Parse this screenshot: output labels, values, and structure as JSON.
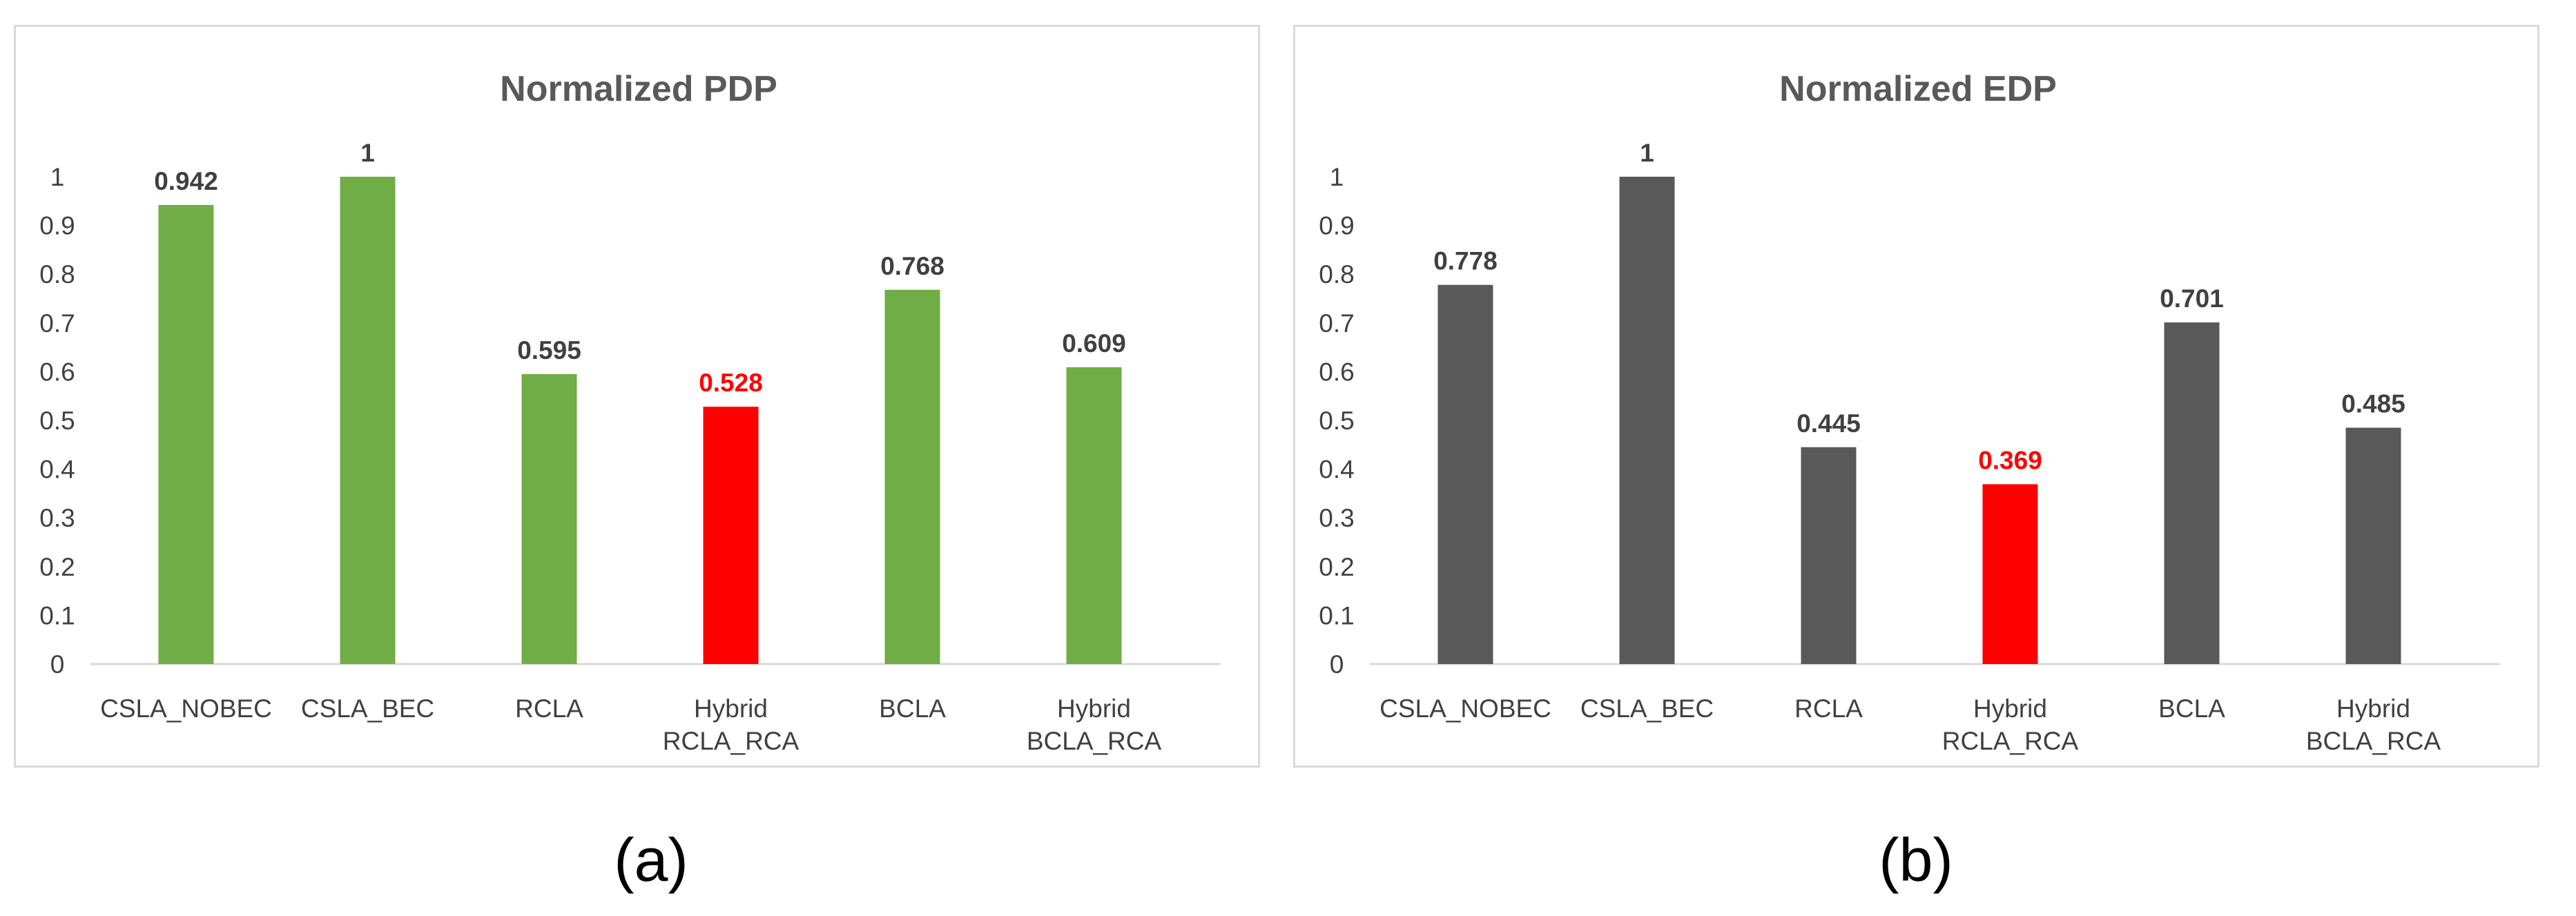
{
  "captions": {
    "a": "(a)",
    "b": "(b)"
  },
  "colors": {
    "pdp_bar": "#70ad47",
    "edp_bar": "#595959",
    "highlight": "#ff0000",
    "label": "#404040",
    "title": "#595959"
  },
  "chart_data": [
    {
      "type": "bar",
      "title": "Normalized PDP",
      "categories": [
        [
          "CSLA_NOBEC"
        ],
        [
          "CSLA_BEC"
        ],
        [
          "RCLA"
        ],
        [
          "Hybrid",
          "RCLA_RCA"
        ],
        [
          "BCLA"
        ],
        [
          "Hybrid",
          "BCLA_RCA"
        ]
      ],
      "values": [
        0.942,
        1,
        0.595,
        0.528,
        0.768,
        0.609
      ],
      "data_labels": [
        "0.942",
        "1",
        "0.595",
        "0.528",
        "0.768",
        "0.609"
      ],
      "highlight_index": 3,
      "bar_color": "#70ad47",
      "highlight_color": "#ff0000",
      "yticks": [
        "0",
        "0.1",
        "0.2",
        "0.3",
        "0.4",
        "0.5",
        "0.6",
        "0.7",
        "0.8",
        "0.9",
        "1"
      ],
      "ylim": [
        0,
        1
      ],
      "grid": false,
      "legend": "none"
    },
    {
      "type": "bar",
      "title": "Normalized EDP",
      "categories": [
        [
          "CSLA_NOBEC"
        ],
        [
          "CSLA_BEC"
        ],
        [
          "RCLA"
        ],
        [
          "Hybrid",
          "RCLA_RCA"
        ],
        [
          "BCLA"
        ],
        [
          "Hybrid",
          "BCLA_RCA"
        ]
      ],
      "values": [
        0.778,
        1,
        0.445,
        0.369,
        0.701,
        0.485
      ],
      "data_labels": [
        "0.778",
        "1",
        "0.445",
        "0.369",
        "0.701",
        "0.485"
      ],
      "highlight_index": 3,
      "bar_color": "#595959",
      "highlight_color": "#ff0000",
      "yticks": [
        "0",
        "0.1",
        "0.2",
        "0.3",
        "0.4",
        "0.5",
        "0.6",
        "0.7",
        "0.8",
        "0.9",
        "1"
      ],
      "ylim": [
        0,
        1
      ],
      "grid": false,
      "legend": "none"
    }
  ]
}
